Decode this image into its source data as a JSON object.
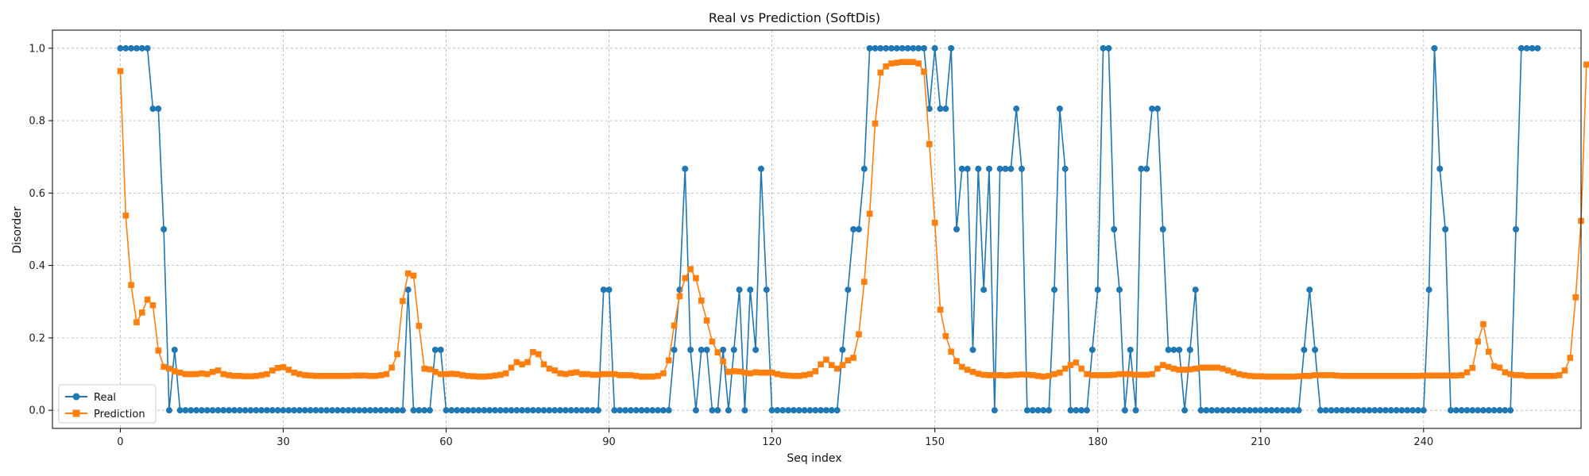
{
  "chart_data": {
    "type": "line",
    "title": "Real vs Prediction (SoftDis)",
    "xlabel": "Seq index",
    "ylabel": "Disorder",
    "xlim": [
      -12.5,
      269
    ],
    "ylim": [
      -0.05,
      1.05
    ],
    "xticks": [
      0,
      30,
      60,
      90,
      120,
      150,
      180,
      210,
      240
    ],
    "yticks": [
      0.0,
      0.2,
      0.4,
      0.6,
      0.8,
      1.0
    ],
    "ytick_labels": [
      "0.0",
      "0.2",
      "0.4",
      "0.6",
      "0.8",
      "1.0"
    ],
    "grid": true,
    "legend_position": "lower-left",
    "series": [
      {
        "name": "Real",
        "color": "#1f77b4",
        "marker": "circle",
        "values": [
          1,
          1,
          1,
          1,
          1,
          1,
          0.833,
          0.833,
          0.5,
          0,
          0.167,
          0,
          0,
          0,
          0,
          0,
          0,
          0,
          0,
          0,
          0,
          0,
          0,
          0,
          0,
          0,
          0,
          0,
          0,
          0,
          0,
          0,
          0,
          0,
          0,
          0,
          0,
          0,
          0,
          0,
          0,
          0,
          0,
          0,
          0,
          0,
          0,
          0,
          0,
          0,
          0,
          0,
          0,
          0.333,
          0,
          0,
          0,
          0,
          0.167,
          0.167,
          0,
          0,
          0,
          0,
          0,
          0,
          0,
          0,
          0,
          0,
          0,
          0,
          0,
          0,
          0,
          0,
          0,
          0,
          0,
          0,
          0,
          0,
          0,
          0,
          0,
          0,
          0,
          0,
          0,
          0.333,
          0.333,
          0,
          0,
          0,
          0,
          0,
          0,
          0,
          0,
          0,
          0,
          0,
          0.167,
          0.333,
          0.667,
          0.167,
          0,
          0.167,
          0.167,
          0,
          0,
          0.167,
          0,
          0.167,
          0.333,
          0,
          0.333,
          0.167,
          0.667,
          0.333,
          0,
          0,
          0,
          0,
          0,
          0,
          0,
          0,
          0,
          0,
          0,
          0,
          0,
          0.167,
          0.333,
          0.5,
          0.5,
          0.667,
          1,
          1,
          1,
          1,
          1,
          1,
          1,
          1,
          1,
          1,
          1,
          0.833,
          1,
          0.833,
          0.833,
          1,
          0.5,
          0.667,
          0.667,
          0.167,
          0.667,
          0.333,
          0.667,
          0,
          0.667,
          0.667,
          0.667,
          0.833,
          0.667,
          0,
          0,
          0,
          0,
          0,
          0.333,
          0.833,
          0.667,
          0,
          0,
          0,
          0,
          0.167,
          0.333,
          1,
          1,
          0.5,
          0.333,
          0,
          0.167,
          0,
          0.667,
          0.667,
          0.833,
          0.833,
          0.5,
          0.167,
          0.167,
          0.167,
          0,
          0.167,
          0.333,
          0,
          0,
          0,
          0,
          0,
          0,
          0,
          0,
          0,
          0,
          0,
          0,
          0,
          0,
          0,
          0,
          0,
          0,
          0,
          0.167,
          0.333,
          0.167,
          0,
          0,
          0,
          0,
          0,
          0,
          0,
          0,
          0,
          0,
          0,
          0,
          0,
          0,
          0,
          0,
          0,
          0,
          0,
          0,
          0.333,
          1,
          0.667,
          0.5,
          0,
          0,
          0,
          0,
          0,
          0,
          0,
          0,
          0,
          0,
          0,
          0,
          0.5,
          1,
          1,
          1,
          1
        ]
      },
      {
        "name": "Prediction",
        "color": "#ff7f0e",
        "marker": "square",
        "values": [
          0.937,
          0.538,
          0.346,
          0.243,
          0.27,
          0.306,
          0.29,
          0.165,
          0.12,
          0.115,
          0.108,
          0.104,
          0.1,
          0.1,
          0.1,
          0.102,
          0.1,
          0.106,
          0.11,
          0.1,
          0.097,
          0.095,
          0.095,
          0.094,
          0.094,
          0.095,
          0.097,
          0.1,
          0.11,
          0.117,
          0.119,
          0.112,
          0.104,
          0.1,
          0.097,
          0.096,
          0.095,
          0.095,
          0.095,
          0.095,
          0.095,
          0.095,
          0.095,
          0.096,
          0.096,
          0.096,
          0.095,
          0.095,
          0.097,
          0.1,
          0.118,
          0.155,
          0.302,
          0.378,
          0.372,
          0.233,
          0.115,
          0.113,
          0.106,
          0.1,
          0.1,
          0.101,
          0.1,
          0.097,
          0.095,
          0.094,
          0.093,
          0.093,
          0.094,
          0.096,
          0.098,
          0.102,
          0.118,
          0.133,
          0.127,
          0.133,
          0.161,
          0.155,
          0.127,
          0.115,
          0.11,
          0.102,
          0.1,
          0.103,
          0.105,
          0.1,
          0.1,
          0.098,
          0.098,
          0.1,
          0.1,
          0.1,
          0.097,
          0.097,
          0.097,
          0.095,
          0.093,
          0.093,
          0.093,
          0.095,
          0.102,
          0.138,
          0.234,
          0.315,
          0.365,
          0.39,
          0.365,
          0.303,
          0.248,
          0.19,
          0.16,
          0.135,
          0.106,
          0.108,
          0.107,
          0.104,
          0.102,
          0.105,
          0.104,
          0.104,
          0.104,
          0.1,
          0.097,
          0.096,
          0.095,
          0.095,
          0.097,
          0.1,
          0.108,
          0.127,
          0.14,
          0.125,
          0.115,
          0.125,
          0.138,
          0.145,
          0.21,
          0.355,
          0.543,
          0.792,
          0.933,
          0.95,
          0.958,
          0.96,
          0.962,
          0.962,
          0.962,
          0.958,
          0.935,
          0.735,
          0.518,
          0.278,
          0.205,
          0.162,
          0.136,
          0.12,
          0.112,
          0.106,
          0.101,
          0.098,
          0.097,
          0.097,
          0.097,
          0.096,
          0.097,
          0.098,
          0.099,
          0.098,
          0.097,
          0.095,
          0.093,
          0.095,
          0.1,
          0.104,
          0.115,
          0.125,
          0.132,
          0.115,
          0.1,
          0.097,
          0.097,
          0.097,
          0.097,
          0.098,
          0.1,
          0.1,
          0.1,
          0.098,
          0.098,
          0.098,
          0.1,
          0.115,
          0.125,
          0.12,
          0.115,
          0.112,
          0.112,
          0.113,
          0.115,
          0.118,
          0.118,
          0.118,
          0.118,
          0.115,
          0.11,
          0.105,
          0.1,
          0.097,
          0.095,
          0.094,
          0.094,
          0.093,
          0.093,
          0.093,
          0.093,
          0.093,
          0.093,
          0.094,
          0.095,
          0.095,
          0.097,
          0.097,
          0.097,
          0.097,
          0.096,
          0.095,
          0.095,
          0.095,
          0.095,
          0.095,
          0.095,
          0.095,
          0.095,
          0.095,
          0.095,
          0.095,
          0.095,
          0.095,
          0.095,
          0.095,
          0.096,
          0.096,
          0.096,
          0.096,
          0.096,
          0.096,
          0.096,
          0.097,
          0.105,
          0.117,
          0.19,
          0.238,
          0.162,
          0.122,
          0.118,
          0.105,
          0.1,
          0.097,
          0.097,
          0.095,
          0.095,
          0.095,
          0.095,
          0.095,
          0.095,
          0.097,
          0.11,
          0.145,
          0.312,
          0.523,
          0.955
        ]
      }
    ]
  }
}
